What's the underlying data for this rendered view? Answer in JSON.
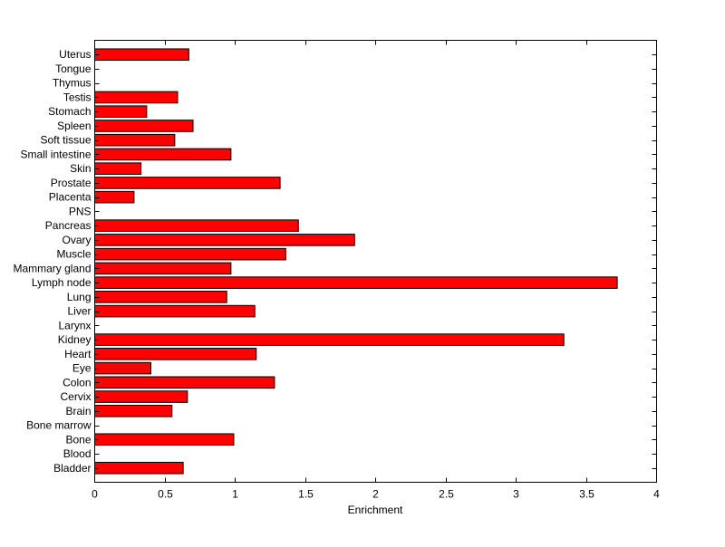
{
  "chart_data": {
    "type": "bar",
    "orientation": "horizontal",
    "title": "",
    "xlabel": "Enrichment",
    "ylabel": "",
    "xlim": [
      0,
      4
    ],
    "xticks": [
      "0",
      "0.5",
      "1",
      "1.5",
      "2",
      "2.5",
      "3",
      "3.5",
      "4"
    ],
    "grid": false,
    "bar_color": "#ff0000",
    "edge_color": "#000000",
    "categories": [
      "Bladder",
      "Blood",
      "Bone",
      "Bone marrow",
      "Brain",
      "Cervix",
      "Colon",
      "Eye",
      "Heart",
      "Kidney",
      "Larynx",
      "Liver",
      "Lung",
      "Lymph node",
      "Mammary gland",
      "Muscle",
      "Ovary",
      "Pancreas",
      "PNS",
      "Placenta",
      "Prostate",
      "Skin",
      "Small intestine",
      "Soft tissue",
      "Spleen",
      "Stomach",
      "Testis",
      "Thymus",
      "Tongue",
      "Uterus"
    ],
    "values": [
      0.63,
      0,
      0.99,
      0,
      0.55,
      0.66,
      1.28,
      0.4,
      1.15,
      3.34,
      0,
      1.14,
      0.94,
      3.72,
      0.97,
      1.36,
      1.85,
      1.45,
      0,
      0.28,
      1.32,
      0.33,
      0.97,
      0.57,
      0.7,
      0.37,
      0.59,
      0,
      0,
      0.67
    ]
  }
}
